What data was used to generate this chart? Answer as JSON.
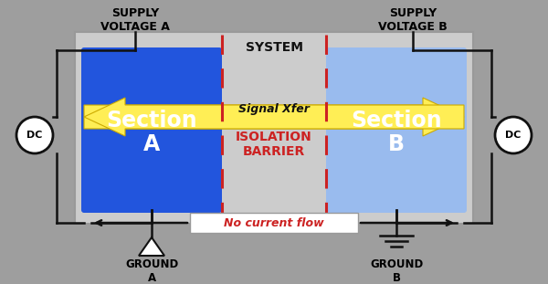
{
  "bg_color": "#9e9e9e",
  "system_box_color": "#cccccc",
  "section_a_color": "#2255dd",
  "section_b_color": "#99bbee",
  "arrow_color": "#ffee55",
  "arrow_edge_color": "#ccaa00",
  "barrier_color": "#cc2222",
  "no_current_box_color": "#ffffff",
  "no_current_text_color": "#cc2222",
  "supply_a_text": "SUPPLY\nVOLTAGE A",
  "supply_b_text": "SUPPLY\nVOLTAGE B",
  "system_text": "SYSTEM",
  "section_a_text": "Section\nA",
  "section_b_text": "Section\nB",
  "signal_xfer_text": "Signal Xfer",
  "isolation_barrier_text": "ISOLATION\nBARRIER",
  "no_current_text": "No current flow",
  "ground_a_text": "GROUND\nA",
  "ground_b_text": "GROUND\nB",
  "dc_text": "DC",
  "wire_color": "#111111",
  "border_color": "#222222"
}
